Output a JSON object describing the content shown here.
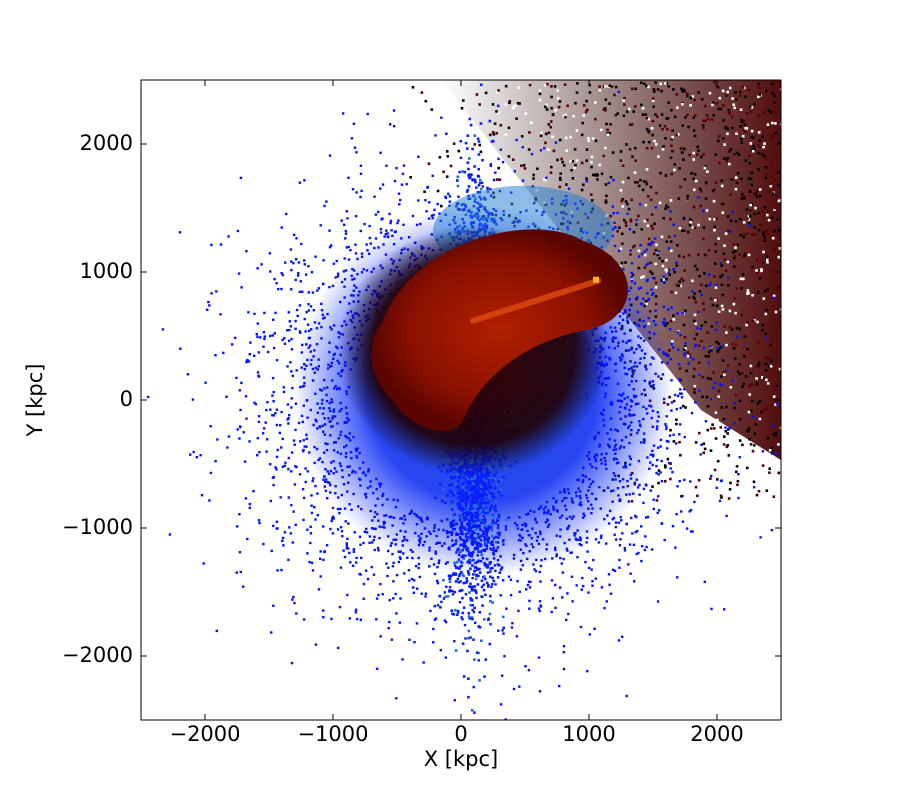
{
  "chart_data": {
    "type": "hist2d",
    "xlabel": "X [kpc]",
    "ylabel": "Y [kpc]",
    "xlim": [
      -2500,
      2500
    ],
    "ylim": [
      -2500,
      2500
    ],
    "xticks": [
      {
        "value": -2000,
        "label": "−2000"
      },
      {
        "value": -1000,
        "label": "−1000"
      },
      0,
      1000,
      2000
    ],
    "yticks": [
      {
        "value": -2000,
        "label": "−2000"
      },
      {
        "value": -1000,
        "label": "−1000"
      },
      0,
      1000,
      2000
    ]
  }
}
